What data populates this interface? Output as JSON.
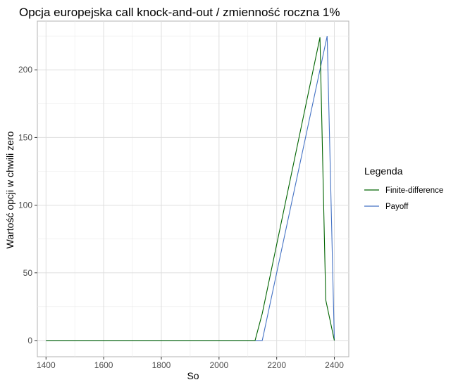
{
  "chart_data": {
    "type": "line",
    "title": "Opcja europejska call knock-and-out / zmienność roczna 1%",
    "xlabel": "So",
    "ylabel": "Wartość opcji w chwili zero",
    "xlim": [
      1370,
      2450
    ],
    "ylim": [
      -12,
      236
    ],
    "x_ticks": [
      1400,
      1600,
      1800,
      2000,
      2200,
      2400
    ],
    "y_ticks": [
      0,
      50,
      100,
      150,
      200
    ],
    "grid": true,
    "legend": {
      "title": "Legenda",
      "position": "right"
    },
    "series": [
      {
        "name": "Finite-difference",
        "color": "#006400",
        "x": [
          1400,
          2125,
          2150,
          2350,
          2370,
          2400
        ],
        "y": [
          0,
          0,
          20,
          224,
          30,
          0
        ]
      },
      {
        "name": "Payoff",
        "color": "#4472c4",
        "x": [
          1400,
          2150,
          2375,
          2400
        ],
        "y": [
          0,
          0,
          225,
          0
        ]
      }
    ]
  }
}
